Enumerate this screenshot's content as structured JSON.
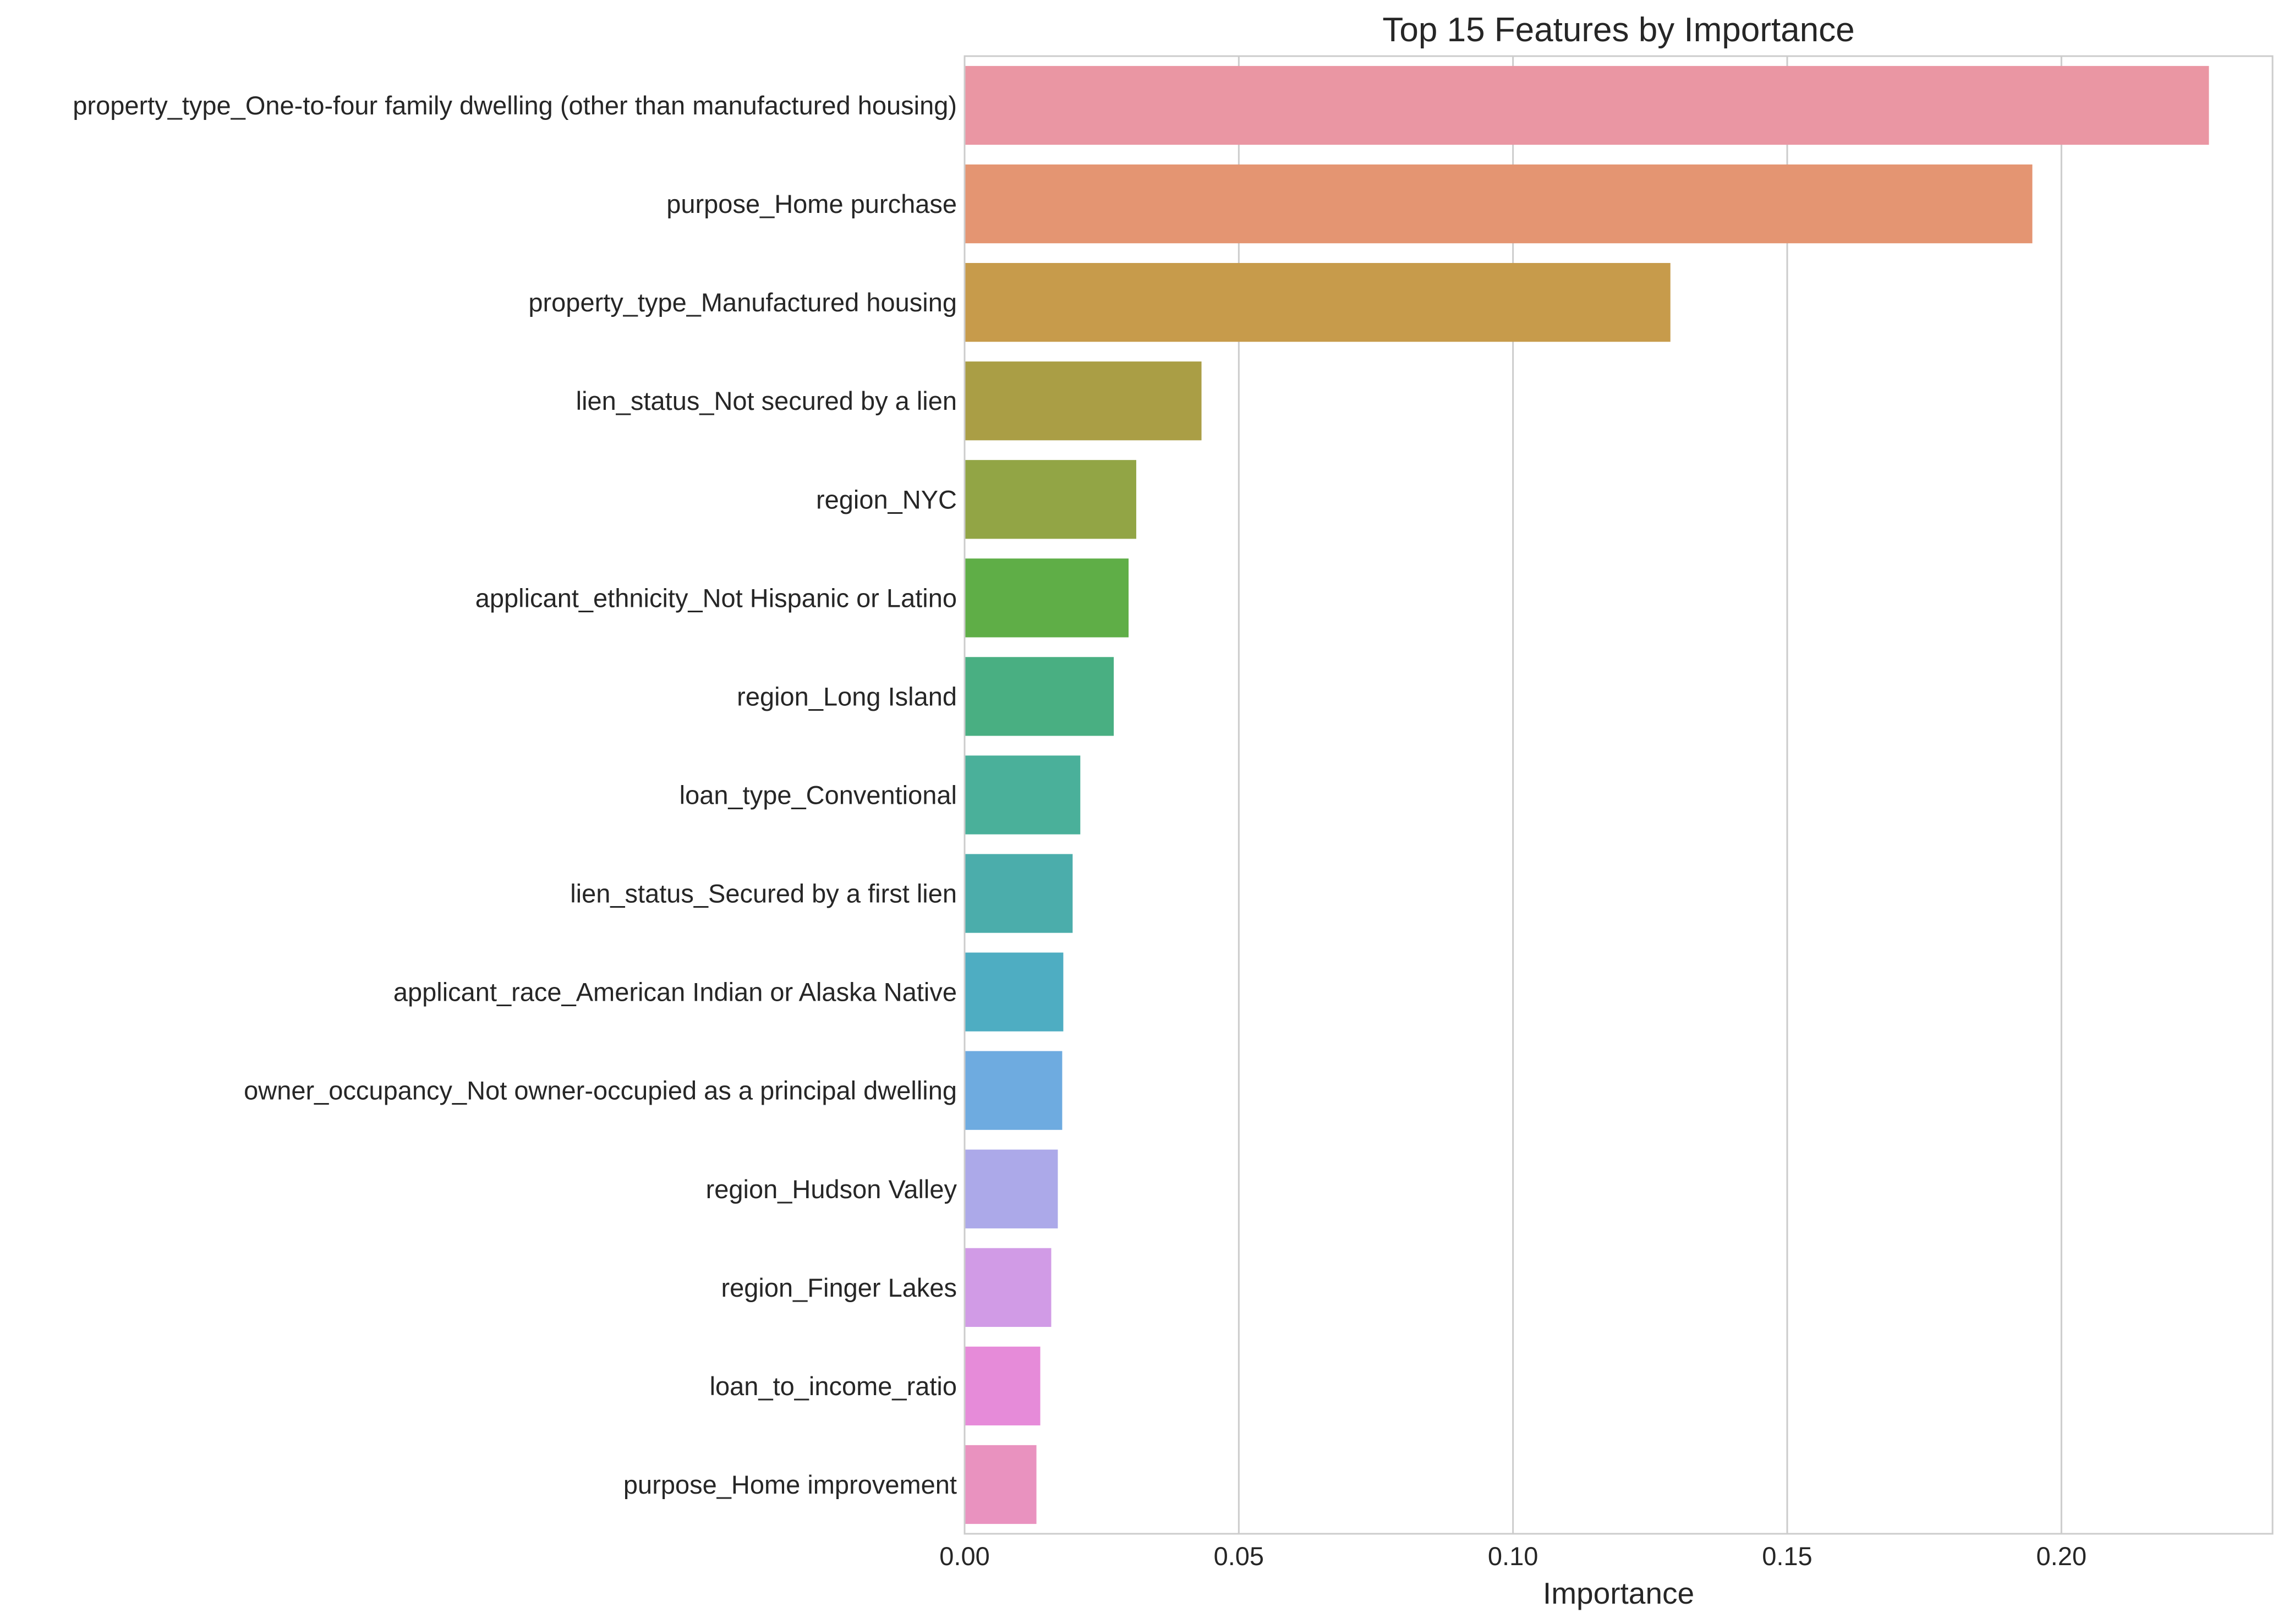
{
  "chart_data": {
    "type": "bar",
    "orientation": "horizontal",
    "title": "Top 15 Features by Importance",
    "xlabel": "Importance",
    "ylabel": "",
    "xlim": [
      0,
      0.2385
    ],
    "xticks": [
      0.0,
      0.05,
      0.1,
      0.15,
      0.2
    ],
    "xtick_labels": [
      "0.00",
      "0.05",
      "0.10",
      "0.15",
      "0.20"
    ],
    "grid": true,
    "legend": "none",
    "categories": [
      "property_type_One-to-four family dwelling (other than manufactured housing)",
      "purpose_Home purchase",
      "property_type_Manufactured housing",
      "lien_status_Not secured by a lien",
      "region_NYC",
      "applicant_ethnicity_Not Hispanic or Latino",
      "region_Long Island",
      "loan_type_Conventional",
      "lien_status_Secured by a first lien",
      "applicant_race_American Indian or Alaska Native",
      "owner_occupancy_Not owner-occupied as a principal dwelling",
      "region_Hudson Valley",
      "region_Finger Lakes",
      "loan_to_income_ratio",
      "purpose_Home improvement"
    ],
    "values": [
      0.2269,
      0.1947,
      0.1287,
      0.0432,
      0.0313,
      0.0299,
      0.0272,
      0.0211,
      0.0197,
      0.018,
      0.0178,
      0.017,
      0.0158,
      0.0138,
      0.0131
    ],
    "colors": [
      "#ea96a3",
      "#e49572",
      "#c79b4b",
      "#aa9e45",
      "#92a545",
      "#5fae47",
      "#49af82",
      "#4ab09a",
      "#4badab",
      "#4eadc2",
      "#6eabe0",
      "#aca9e9",
      "#d19be6",
      "#e68bd9",
      "#e992bf"
    ]
  }
}
